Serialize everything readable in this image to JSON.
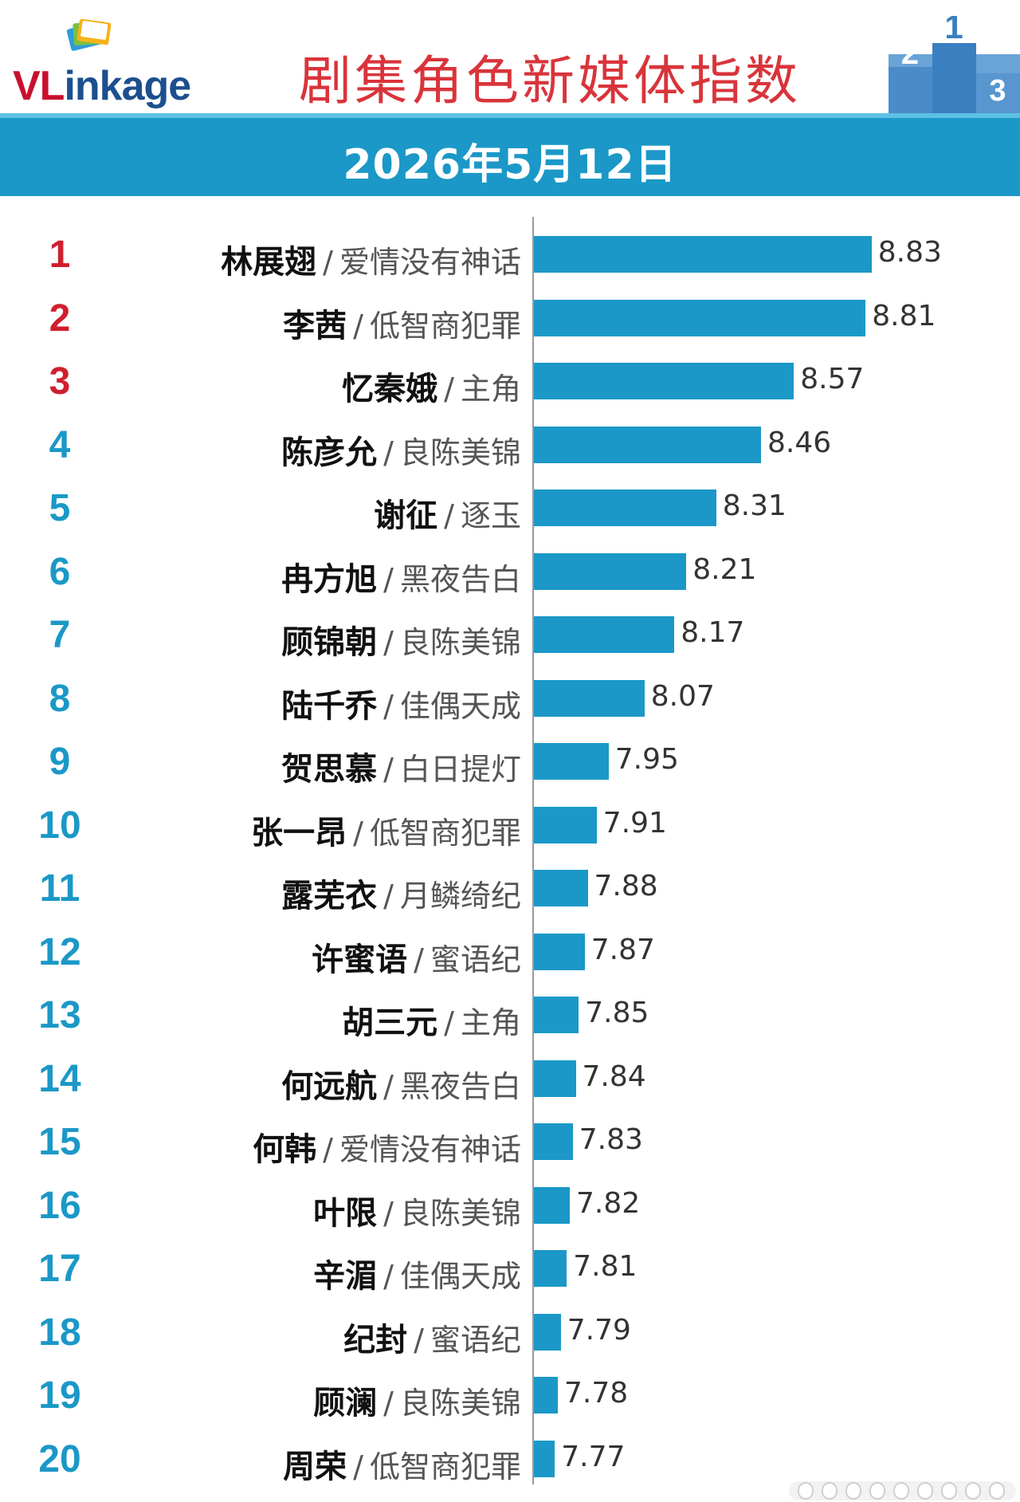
{
  "header": {
    "logo_text_red": "VL",
    "logo_text_blue": "inkage",
    "title": "剧集角色新媒体指数",
    "date": "2026年5月12日"
  },
  "colors": {
    "bar": "#1b98c7",
    "rank_top3": "#cf1f2e",
    "rank_rest": "#1b98c7",
    "title": "#d9343b",
    "band": "#1b98c7"
  },
  "icons": [
    "logo-cards-icon",
    "podium-icon"
  ],
  "chart_data": {
    "type": "bar",
    "orientation": "horizontal",
    "title": "剧集角色新媒体指数",
    "subtitle": "2026年5月12日",
    "xlim": [
      7.7,
      8.9
    ],
    "grid": false,
    "items": [
      {
        "rank": "1",
        "name": "林展翅",
        "show": "爱情没有神话",
        "value": 8.83,
        "label": "8.83"
      },
      {
        "rank": "2",
        "name": "李茜",
        "show": "低智商犯罪",
        "value": 8.81,
        "label": "8.81"
      },
      {
        "rank": "3",
        "name": "忆秦娥",
        "show": "主角",
        "value": 8.57,
        "label": "8.57"
      },
      {
        "rank": "4",
        "name": "陈彦允",
        "show": "良陈美锦",
        "value": 8.46,
        "label": "8.46"
      },
      {
        "rank": "5",
        "name": "谢征",
        "show": "逐玉",
        "value": 8.31,
        "label": "8.31"
      },
      {
        "rank": "6",
        "name": "冉方旭",
        "show": "黑夜告白",
        "value": 8.21,
        "label": "8.21"
      },
      {
        "rank": "7",
        "name": "顾锦朝",
        "show": "良陈美锦",
        "value": 8.17,
        "label": "8.17"
      },
      {
        "rank": "8",
        "name": "陆千乔",
        "show": "佳偶天成",
        "value": 8.07,
        "label": "8.07"
      },
      {
        "rank": "9",
        "name": "贺思慕",
        "show": "白日提灯",
        "value": 7.95,
        "label": "7.95"
      },
      {
        "rank": "10",
        "name": "张一昂",
        "show": "低智商犯罪",
        "value": 7.91,
        "label": "7.91"
      },
      {
        "rank": "11",
        "name": "露芜衣",
        "show": "月鳞绮纪",
        "value": 7.88,
        "label": "7.88"
      },
      {
        "rank": "12",
        "name": "许蜜语",
        "show": "蜜语纪",
        "value": 7.87,
        "label": "7.87"
      },
      {
        "rank": "13",
        "name": "胡三元",
        "show": "主角",
        "value": 7.85,
        "label": "7.85"
      },
      {
        "rank": "14",
        "name": "何远航",
        "show": "黑夜告白",
        "value": 7.84,
        "label": "7.84"
      },
      {
        "rank": "15",
        "name": "何韩",
        "show": "爱情没有神话",
        "value": 7.83,
        "label": "7.83"
      },
      {
        "rank": "16",
        "name": "叶限",
        "show": "良陈美锦",
        "value": 7.82,
        "label": "7.82"
      },
      {
        "rank": "17",
        "name": "辛湄",
        "show": "佳偶天成",
        "value": 7.81,
        "label": "7.81"
      },
      {
        "rank": "18",
        "name": "纪封",
        "show": "蜜语纪",
        "value": 7.79,
        "label": "7.79"
      },
      {
        "rank": "19",
        "name": "顾澜",
        "show": "良陈美锦",
        "value": 7.78,
        "label": "7.78"
      },
      {
        "rank": "20",
        "name": "周荣",
        "show": "低智商犯罪",
        "value": 7.77,
        "label": "7.77"
      }
    ]
  }
}
